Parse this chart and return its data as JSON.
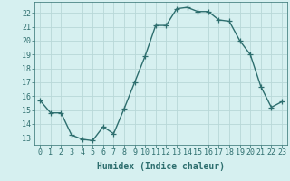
{
  "x": [
    0,
    1,
    2,
    3,
    4,
    5,
    6,
    7,
    8,
    9,
    10,
    11,
    12,
    13,
    14,
    15,
    16,
    17,
    18,
    19,
    20,
    21,
    22,
    23
  ],
  "y": [
    15.7,
    14.8,
    14.8,
    13.2,
    12.9,
    12.8,
    13.8,
    13.3,
    15.1,
    17.0,
    18.9,
    21.1,
    21.1,
    22.3,
    22.4,
    22.1,
    22.1,
    21.5,
    21.4,
    20.0,
    19.0,
    16.7,
    15.2,
    15.6
  ],
  "line_color": "#2d6e6e",
  "marker": "+",
  "markersize": 4,
  "linewidth": 1.0,
  "bg_color": "#d6f0f0",
  "grid_color": "#b8d8d8",
  "xlabel": "Humidex (Indice chaleur)",
  "xlabel_fontsize": 7,
  "tick_fontsize": 6,
  "ylim": [
    12.5,
    22.8
  ],
  "yticks": [
    13,
    14,
    15,
    16,
    17,
    18,
    19,
    20,
    21,
    22
  ],
  "xticks": [
    0,
    1,
    2,
    3,
    4,
    5,
    6,
    7,
    8,
    9,
    10,
    11,
    12,
    13,
    14,
    15,
    16,
    17,
    18,
    19,
    20,
    21,
    22,
    23
  ]
}
